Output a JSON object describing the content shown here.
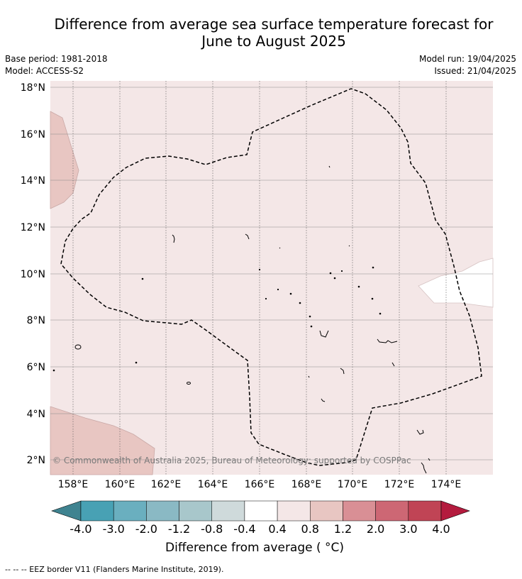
{
  "header": {
    "title_line1": "Difference from average sea surface temperature forecast for",
    "title_line2": "June to August 2025",
    "base_period": "Base period: 1981-2018",
    "model": "Model: ACCESS-S2",
    "model_run": "Model run: 19/04/2025",
    "issued": "Issued: 21/04/2025"
  },
  "map": {
    "lat_labels": [
      "18°N",
      "16°N",
      "14°N",
      "12°N",
      "10°N",
      "8°N",
      "6°N",
      "4°N",
      "2°N"
    ],
    "lon_labels": [
      "158°E",
      "160°E",
      "162°E",
      "164°E",
      "166°E",
      "168°E",
      "170°E",
      "172°E",
      "174°E"
    ],
    "copyright": "© Commonwealth of Australia 2025, Bureau of Meteorology; supported by COSPPac",
    "background_color": "#f4e7e7",
    "region_color": "#e8c6c2"
  },
  "colorbar": {
    "ticks": [
      "-4.0",
      "-3.0",
      "-2.0",
      "-1.2",
      "-0.8",
      "-0.4",
      "0.4",
      "0.8",
      "1.2",
      "2.0",
      "3.0",
      "4.0"
    ],
    "colors": [
      "#3f8390",
      "#48a1b4",
      "#6aafbf",
      "#8ab9c4",
      "#a8c7cb",
      "#cfdadb",
      "#ffffff",
      "#f4e7e7",
      "#e8c6c2",
      "#d98f95",
      "#cd6774",
      "#c04455",
      "#b41b3e"
    ],
    "title": "Difference from average ( °C)"
  },
  "footnote": "--  --  -- EEZ border V11 (Flanders Marine Institute, 2019)."
}
